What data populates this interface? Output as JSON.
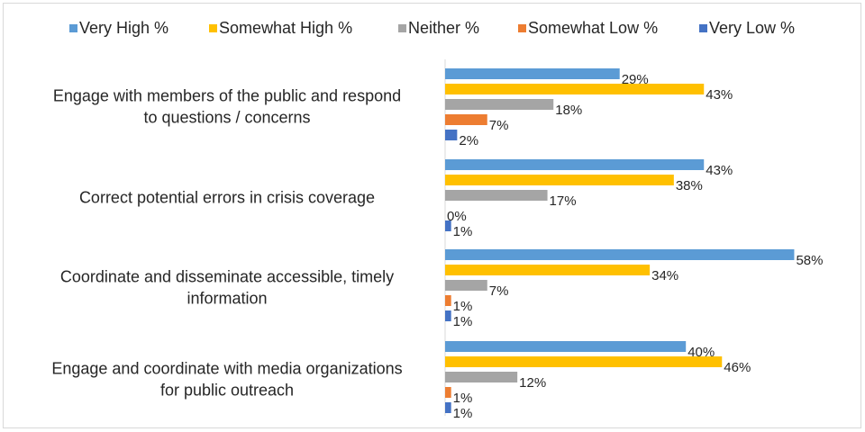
{
  "chart_data": {
    "type": "bar",
    "orientation": "horizontal",
    "legend_position": "top",
    "grid": false,
    "xlim": [
      0,
      70
    ],
    "value_suffix": "%",
    "categories": [
      [
        "Engage with members of the public and respond",
        "to questions / concerns"
      ],
      [
        "Correct potential errors in crisis coverage"
      ],
      [
        "Coordinate and disseminate accessible, timely",
        "information"
      ],
      [
        "Engage and coordinate with media organizations",
        "for public outreach"
      ]
    ],
    "series": [
      {
        "name": "Very High %",
        "color": "#5b9bd5",
        "values": [
          29,
          43,
          58,
          40
        ]
      },
      {
        "name": "Somewhat High %",
        "color": "#ffc000",
        "values": [
          43,
          38,
          34,
          46
        ]
      },
      {
        "name": "Neither %",
        "color": "#a5a5a5",
        "values": [
          18,
          17,
          7,
          12
        ]
      },
      {
        "name": "Somewhat Low %",
        "color": "#ed7d31",
        "values": [
          7,
          0,
          1,
          1
        ]
      },
      {
        "name": "Very Low %",
        "color": "#4472c4",
        "values": [
          2,
          1,
          1,
          1
        ]
      }
    ]
  }
}
